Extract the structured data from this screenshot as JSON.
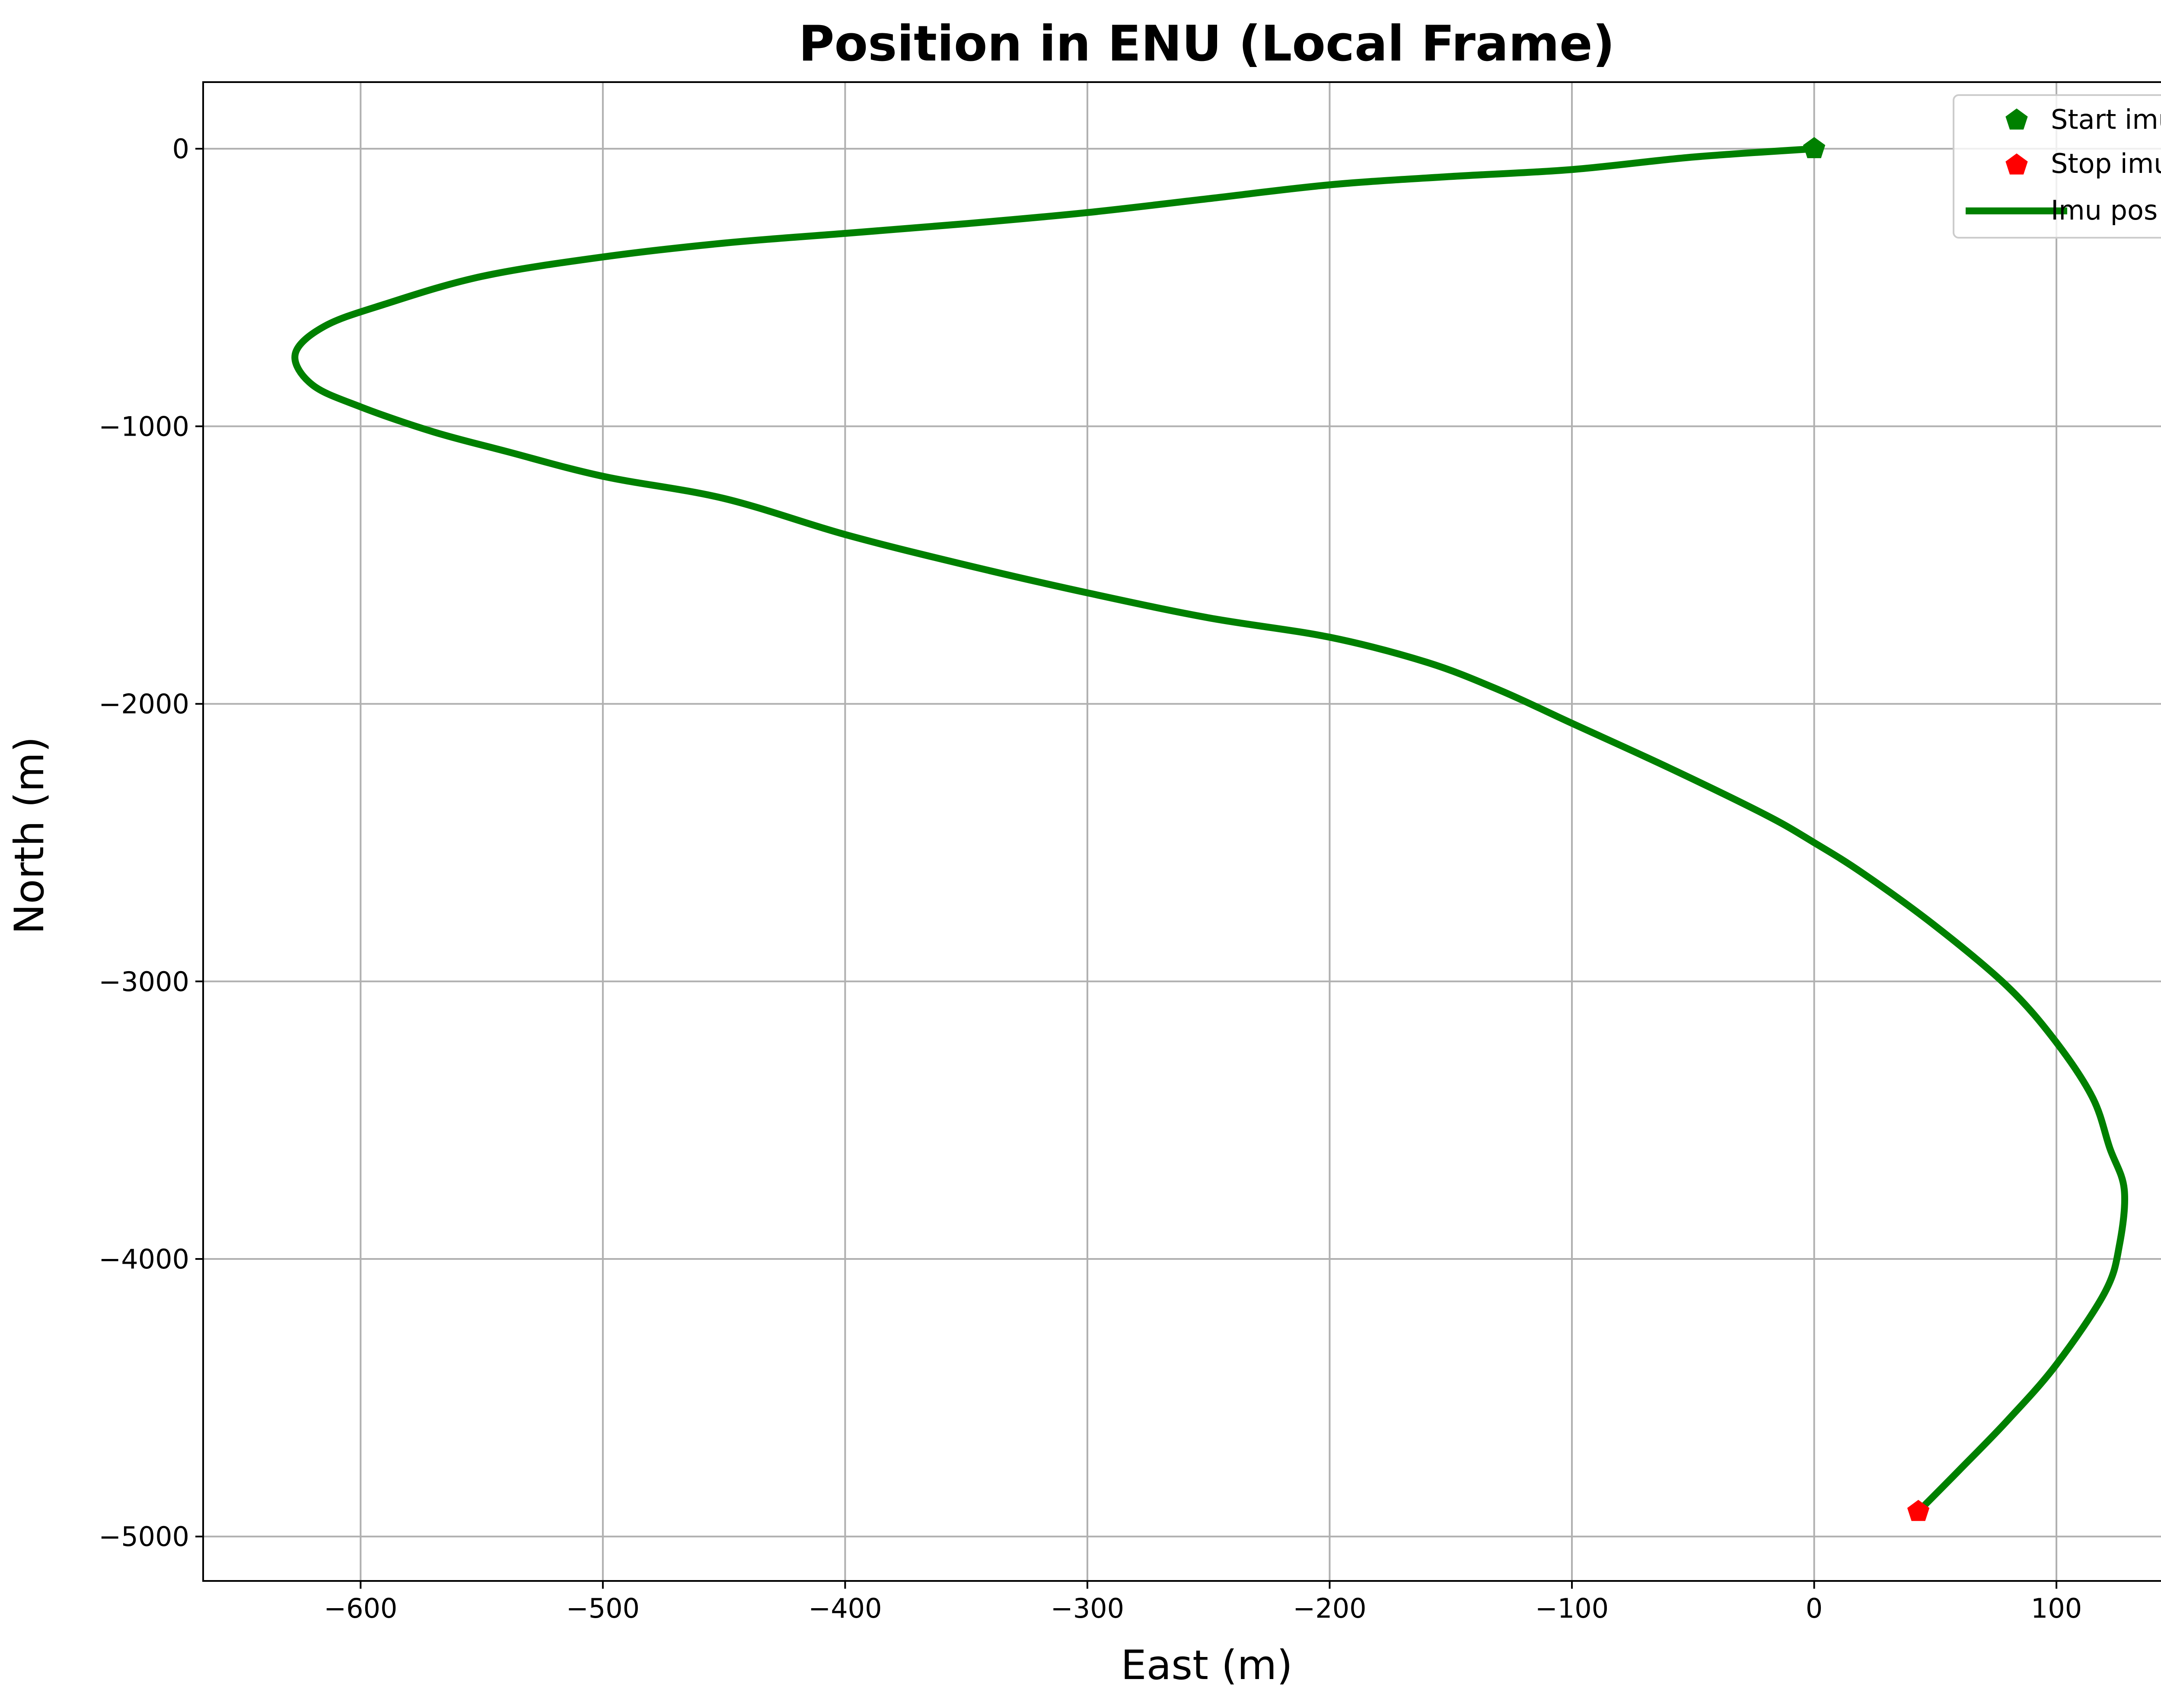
{
  "chart_data": {
    "type": "line",
    "title": "Position in ENU (Local Frame)",
    "xlabel": "East (m)",
    "ylabel": "North (m)",
    "xlim": [
      -665,
      166
    ],
    "ylim": [
      -5160,
      240
    ],
    "xticks": [
      -600,
      -500,
      -400,
      -300,
      -200,
      -100,
      0,
      100
    ],
    "yticks": [
      0,
      -1000,
      -2000,
      -3000,
      -4000,
      -5000
    ],
    "grid": true,
    "legend_position": "top-right",
    "colors": {
      "line": "#008000",
      "start": "#008000",
      "stop": "#ff0000",
      "grid": "#b0b0b0"
    },
    "legend": [
      {
        "label": "Start imu",
        "marker": "pentagon",
        "color": "#008000"
      },
      {
        "label": "Stop imu",
        "marker": "pentagon",
        "color": "#ff0000"
      },
      {
        "label": "Imu pos",
        "marker": "line",
        "color": "#008000"
      }
    ],
    "start": {
      "x": 0,
      "y": 0
    },
    "stop": {
      "x": 43,
      "y": -4910
    },
    "series": [
      {
        "name": "Imu pos",
        "points": [
          [
            0,
            0
          ],
          [
            -50,
            -30
          ],
          [
            -100,
            -75
          ],
          [
            -150,
            -100
          ],
          [
            -200,
            -130
          ],
          [
            -250,
            -180
          ],
          [
            -300,
            -230
          ],
          [
            -350,
            -270
          ],
          [
            -400,
            -305
          ],
          [
            -450,
            -340
          ],
          [
            -500,
            -390
          ],
          [
            -550,
            -460
          ],
          [
            -590,
            -560
          ],
          [
            -615,
            -640
          ],
          [
            -627,
            -740
          ],
          [
            -620,
            -850
          ],
          [
            -600,
            -930
          ],
          [
            -570,
            -1020
          ],
          [
            -540,
            -1090
          ],
          [
            -500,
            -1180
          ],
          [
            -450,
            -1260
          ],
          [
            -400,
            -1390
          ],
          [
            -350,
            -1500
          ],
          [
            -300,
            -1600
          ],
          [
            -250,
            -1690
          ],
          [
            -200,
            -1760
          ],
          [
            -160,
            -1850
          ],
          [
            -130,
            -1950
          ],
          [
            -100,
            -2070
          ],
          [
            -60,
            -2230
          ],
          [
            -20,
            -2400
          ],
          [
            0,
            -2500
          ],
          [
            20,
            -2610
          ],
          [
            50,
            -2800
          ],
          [
            80,
            -3020
          ],
          [
            100,
            -3220
          ],
          [
            115,
            -3420
          ],
          [
            122,
            -3600
          ],
          [
            128,
            -3750
          ],
          [
            126,
            -3950
          ],
          [
            120,
            -4120
          ],
          [
            100,
            -4380
          ],
          [
            80,
            -4580
          ],
          [
            60,
            -4760
          ],
          [
            43,
            -4910
          ]
        ]
      }
    ]
  }
}
